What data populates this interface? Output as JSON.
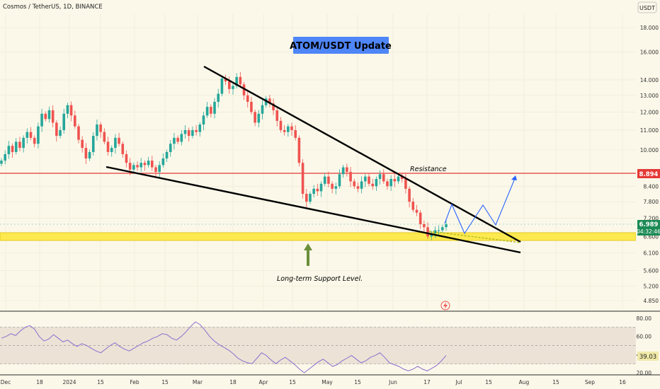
{
  "header": {
    "symbol": "Cosmos / TetherUS, 1D, BINANCE",
    "currency": "USDT"
  },
  "colors": {
    "background": "#fbf8e9",
    "up": "#26a69a",
    "down": "#ef5350",
    "resistance": "#e53935",
    "support_band": "#fce94f",
    "title_bg": "#4f86f7",
    "rsi_line": "#8e6ccf",
    "projection": "#2962ff"
  },
  "annotations": {
    "title": "ATOM/USDT Update",
    "resistance": "Resistance",
    "support": "Long-term Support Level."
  },
  "price_tags": {
    "resistance": "8.894",
    "last": "6.989",
    "countdown": "04:32:46"
  },
  "rsi_tag": "39.03",
  "chart_data": [
    {
      "type": "candlestick",
      "title": "Cosmos / TetherUS, 1D, BINANCE",
      "y_axis_ticks": [
        "18.000",
        "16.000",
        "14.000",
        "13.000",
        "12.000",
        "11.000",
        "10.000",
        "8.400",
        "7.800",
        "7.200",
        "6.600",
        "6.100",
        "5.600",
        "5.200",
        "4.850"
      ],
      "x_axis_ticks": [
        "Dec",
        "18",
        "2024",
        "15",
        "Feb",
        "15",
        "Mar",
        "18",
        "Apr",
        "15",
        "May",
        "15",
        "Jun",
        "17",
        "Jul",
        "15",
        "Aug",
        "15",
        "Sep",
        "16"
      ],
      "ylim": [
        4.7,
        19.5
      ],
      "y_scale": "log",
      "series": [
        {
          "name": "Close (approx.)",
          "values": [
            9.5,
            9.8,
            10.2,
            9.9,
            10.4,
            10.1,
            10.6,
            10.9,
            10.6,
            10.3,
            11.2,
            11.9,
            11.6,
            12.1,
            11.4,
            10.7,
            11.0,
            11.9,
            12.4,
            11.8,
            11.2,
            10.5,
            10.1,
            9.6,
            9.9,
            10.7,
            11.3,
            10.9,
            10.4,
            9.9,
            10.1,
            10.6,
            10.3,
            9.8,
            9.4,
            9.1,
            9.3,
            9.2,
            9.4,
            9.3,
            9.5,
            9.2,
            9.0,
            9.3,
            9.6,
            9.9,
            10.3,
            10.6,
            10.4,
            10.8,
            11.0,
            10.7,
            11.0,
            10.9,
            11.3,
            11.8,
            12.3,
            11.9,
            12.6,
            13.1,
            14.1,
            13.9,
            13.4,
            13.6,
            14.2,
            13.7,
            13.0,
            12.6,
            12.0,
            11.4,
            11.9,
            12.4,
            12.8,
            12.5,
            12.1,
            11.5,
            11.0,
            10.9,
            11.2,
            11.0,
            10.6,
            9.4,
            8.1,
            7.8,
            8.1,
            8.3,
            8.2,
            8.5,
            8.8,
            8.5,
            8.3,
            8.4,
            8.9,
            9.2,
            9.0,
            8.6,
            8.4,
            8.3,
            8.6,
            8.8,
            8.5,
            8.4,
            8.7,
            8.9,
            8.6,
            8.4,
            8.7,
            8.6,
            8.8,
            8.7,
            8.3,
            7.8,
            7.5,
            7.4,
            7.0,
            6.9,
            6.6,
            6.7,
            6.8,
            6.8,
            6.9,
            7.0
          ]
        }
      ],
      "lines": [
        {
          "name": "Resistance",
          "value": 8.894
        },
        {
          "name": "Long-term Support Level.",
          "range": [
            6.6,
            6.82
          ]
        }
      ]
    },
    {
      "type": "line",
      "title": "RSI",
      "y_axis_ticks": [
        "80.00",
        "60.00",
        "40.00",
        "20.00"
      ],
      "levels": [
        70,
        50,
        30
      ],
      "ylim": [
        15,
        90
      ],
      "series": [
        {
          "name": "RSI",
          "values": [
            58,
            60,
            63,
            61,
            66,
            70,
            72,
            68,
            60,
            55,
            57,
            62,
            58,
            54,
            56,
            52,
            49,
            52,
            50,
            47,
            44,
            42,
            46,
            50,
            53,
            49,
            46,
            44,
            47,
            50,
            53,
            55,
            58,
            60,
            63,
            62,
            58,
            56,
            60,
            65,
            71,
            76,
            73,
            67,
            60,
            55,
            51,
            48,
            45,
            41,
            36,
            33,
            31,
            30,
            36,
            42,
            39,
            34,
            30,
            34,
            37,
            33,
            29,
            24,
            20,
            24,
            28,
            32,
            35,
            31,
            27,
            29,
            33,
            36,
            39,
            35,
            31,
            33,
            37,
            39,
            42,
            37,
            31,
            29,
            27,
            24,
            22,
            24,
            27,
            24,
            22,
            25,
            28,
            33,
            39
          ]
        }
      ]
    }
  ]
}
